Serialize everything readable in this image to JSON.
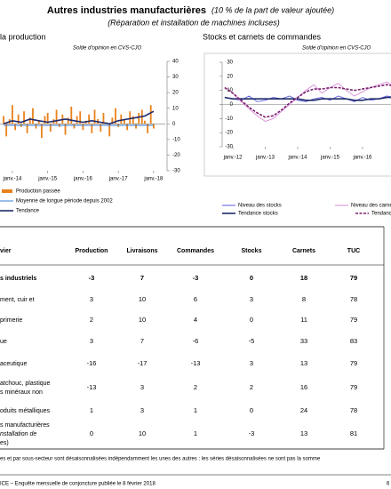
{
  "header": {
    "title": "Autres industries manufacturières",
    "title_note": "(10 % de la part de valeur ajoutée)",
    "subtitle": "(Réparation et installation de machines incluses)"
  },
  "chart_data": [
    {
      "type": "combo",
      "title": "la production",
      "subtitle": "Solde d'opinion en CVS-CJO",
      "xlim": [
        2013.65,
        2018.33
      ],
      "xticks": [
        {
          "value": 2014,
          "label": "janv.-14"
        },
        {
          "value": 2015,
          "label": "janv.-15"
        },
        {
          "value": 2016,
          "label": "janv.-16"
        },
        {
          "value": 2017,
          "label": "janv.-17"
        },
        {
          "value": 2018,
          "label": "janv.-18"
        }
      ],
      "ylim": [
        -30,
        40
      ],
      "yticks": [
        -30,
        -20,
        -10,
        0,
        10,
        20,
        30,
        40
      ],
      "series": [
        {
          "name": "Production passée",
          "type": "bar",
          "color": "#e8821e",
          "x": [
            2013.75,
            2013.83,
            2013.92,
            2014,
            2014.08,
            2014.17,
            2014.25,
            2014.33,
            2014.42,
            2014.5,
            2014.58,
            2014.67,
            2014.75,
            2014.83,
            2014.92,
            2015,
            2015.08,
            2015.17,
            2015.25,
            2015.33,
            2015.42,
            2015.5,
            2015.58,
            2015.67,
            2015.75,
            2015.83,
            2015.92,
            2016,
            2016.08,
            2016.17,
            2016.25,
            2016.33,
            2016.42,
            2016.5,
            2016.58,
            2016.67,
            2016.75,
            2016.83,
            2016.92,
            2017,
            2017.08,
            2017.17,
            2017.25,
            2017.33,
            2017.42,
            2017.5,
            2017.58,
            2017.67,
            2017.75,
            2017.83,
            2017.92,
            2018
          ],
          "values": [
            5,
            -8,
            3,
            12,
            -4,
            6,
            -2,
            8,
            -6,
            4,
            10,
            -3,
            2,
            -9,
            5,
            7,
            -5,
            3,
            9,
            -2,
            6,
            -7,
            4,
            11,
            -3,
            5,
            8,
            -4,
            2,
            6,
            -6,
            9,
            3,
            -5,
            7,
            1,
            -8,
            4,
            10,
            -2,
            6,
            3,
            -4,
            8,
            5,
            -3,
            7,
            9,
            2,
            -6,
            12,
            -3
          ]
        },
        {
          "name": "Moyenne de longue période depuis 2002",
          "type": "line",
          "color": "#3a7fd5",
          "x": [
            2013.75,
            2018
          ],
          "values": [
            -1,
            -1
          ]
        },
        {
          "name": "Tendance",
          "type": "line",
          "color": "#1f2a6b",
          "x": [
            2013.75,
            2014,
            2014.25,
            2014.5,
            2014.75,
            2015,
            2015.25,
            2015.5,
            2015.75,
            2016,
            2016.25,
            2016.5,
            2016.75,
            2017,
            2017.25,
            2017.5,
            2017.75,
            2018
          ],
          "values": [
            0,
            2,
            1,
            3,
            2,
            1,
            2,
            3,
            2,
            1,
            2,
            1,
            0,
            2,
            3,
            4,
            5,
            8
          ]
        }
      ]
    },
    {
      "type": "line",
      "title": "Stocks et carnets de commandes",
      "subtitle": "Solde d'opinion en CVS-CJO",
      "xlim": [
        2011.67,
        2017.4
      ],
      "xticks": [
        {
          "value": 2012,
          "label": "janv.-12"
        },
        {
          "value": 2013,
          "label": "janv.-13"
        },
        {
          "value": 2014,
          "label": "janv.-14"
        },
        {
          "value": 2015,
          "label": "janv.-15"
        },
        {
          "value": 2016,
          "label": "janv.-16"
        }
      ],
      "ylim": [
        -30,
        30
      ],
      "yticks": [
        -30,
        -20,
        -10,
        0,
        10,
        20,
        30
      ],
      "series": [
        {
          "name": "Niveau des stocks",
          "type": "line",
          "color": "#5b5bd6",
          "x": [
            2011.75,
            2012,
            2012.25,
            2012.5,
            2012.75,
            2013,
            2013.25,
            2013.5,
            2013.75,
            2014,
            2014.25,
            2014.5,
            2014.75,
            2015,
            2015.25,
            2015.5,
            2015.75,
            2016,
            2016.25,
            2016.5,
            2016.75,
            2017,
            2017.25
          ],
          "values": [
            5,
            4,
            3,
            6,
            2,
            3,
            5,
            4,
            6,
            3,
            2,
            4,
            5,
            3,
            6,
            4,
            2,
            5,
            3,
            4,
            6,
            5,
            4
          ]
        },
        {
          "name": "Tendance stocks",
          "type": "line",
          "color": "#1f2a6b",
          "x": [
            2011.75,
            2012,
            2012.25,
            2012.5,
            2012.75,
            2013,
            2013.25,
            2013.5,
            2013.75,
            2014,
            2014.25,
            2014.5,
            2014.75,
            2015,
            2015.25,
            2015.5,
            2015.75,
            2016,
            2016.25,
            2016.5,
            2016.75,
            2017,
            2017.25
          ],
          "values": [
            5,
            4,
            4,
            4,
            4,
            4,
            4,
            4,
            4,
            4,
            3,
            3,
            4,
            4,
            4,
            4,
            3,
            3,
            4,
            4,
            5,
            5,
            5
          ]
        },
        {
          "name": "Niveau des carnets",
          "type": "line",
          "color": "#d68ad6",
          "x": [
            2011.75,
            2012,
            2012.25,
            2012.5,
            2012.75,
            2013,
            2013.25,
            2013.5,
            2013.75,
            2014,
            2014.25,
            2014.5,
            2014.75,
            2015,
            2015.25,
            2015.5,
            2015.75,
            2016,
            2016.25,
            2016.5,
            2016.75,
            2017,
            2017.25
          ],
          "values": [
            12,
            8,
            2,
            -3,
            -8,
            -12,
            -10,
            -5,
            0,
            5,
            10,
            14,
            8,
            12,
            15,
            10,
            6,
            9,
            12,
            14,
            16,
            12,
            10
          ]
        },
        {
          "name": "Tendance carnets",
          "type": "line",
          "dashed": true,
          "color": "#7a1f6e",
          "x": [
            2011.75,
            2012,
            2012.25,
            2012.5,
            2012.75,
            2013,
            2013.25,
            2013.5,
            2013.75,
            2014,
            2014.25,
            2014.5,
            2014.75,
            2015,
            2015.25,
            2015.5,
            2015.75,
            2016,
            2016.25,
            2016.5,
            2016.75,
            2017,
            2017.25
          ],
          "values": [
            12,
            8,
            3,
            -2,
            -6,
            -9,
            -8,
            -4,
            1,
            5,
            9,
            11,
            11,
            12,
            12,
            11,
            10,
            11,
            12,
            13,
            14,
            13,
            12
          ]
        }
      ]
    }
  ],
  "table": {
    "columns": [
      "vier",
      "Production",
      "Livraisons",
      "Commandes",
      "Stocks",
      "Carnets",
      "TUC"
    ],
    "rows": [
      {
        "label": [
          "s industriels"
        ],
        "values": [
          -3,
          7,
          -3,
          0,
          18,
          79
        ]
      },
      {
        "label": [
          "ment, cuir et"
        ],
        "values": [
          3,
          10,
          6,
          3,
          8,
          78
        ]
      },
      {
        "label": [
          "primerie"
        ],
        "values": [
          2,
          10,
          4,
          0,
          11,
          79
        ]
      },
      {
        "label": [
          "ue"
        ],
        "values": [
          3,
          7,
          -6,
          -5,
          33,
          83
        ]
      },
      {
        "label": [
          "aceutique"
        ],
        "values": [
          -16,
          -17,
          -13,
          3,
          13,
          79
        ]
      },
      {
        "label": [
          "atchouc, plastique",
          "s minéraux non"
        ],
        "values": [
          -13,
          3,
          2,
          2,
          16,
          79
        ]
      },
      {
        "label": [
          "oduits métalliques"
        ],
        "values": [
          1,
          3,
          1,
          0,
          24,
          78
        ]
      },
      {
        "label": [
          "s manufacturières",
          "nstallation de",
          "es)"
        ],
        "values": [
          0,
          10,
          1,
          -3,
          13,
          81
        ]
      }
    ]
  },
  "footnote": "es et par sous-secteur sont désaisonnalisées indépendamment les unes des autres : les séries désaisonnalisées ne sont pas la somme",
  "footer": {
    "text": "ICE –  Enquête mensuelle de conjoncture publiée le 8 février 2018",
    "page": "6"
  }
}
